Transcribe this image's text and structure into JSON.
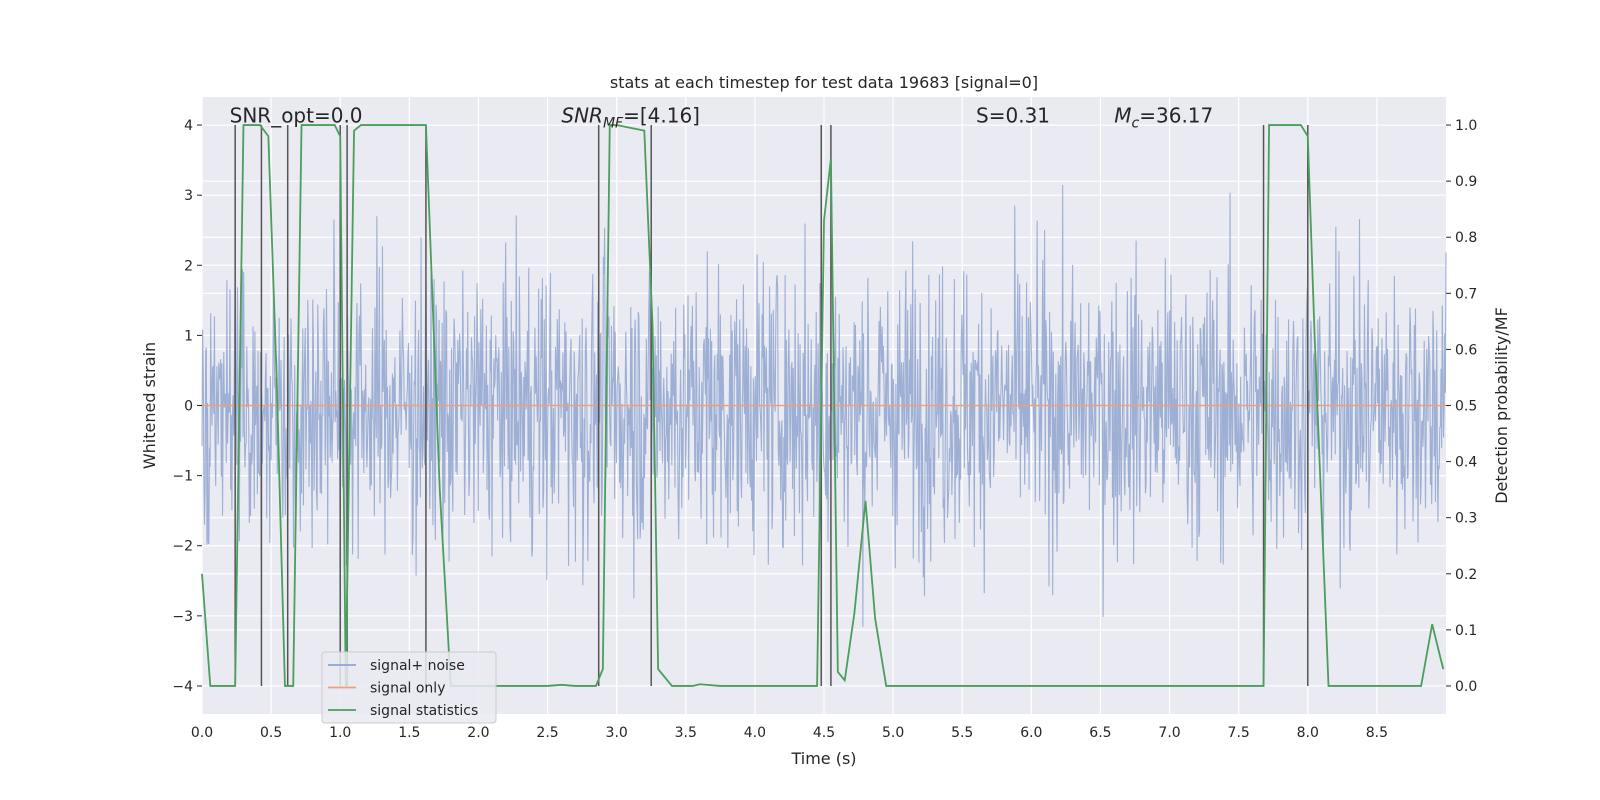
{
  "chart_data": {
    "type": "line",
    "title": "stats at each timestep for test data 19683 [signal=0]",
    "xlabel": "Time (s)",
    "ylabel_left": "Whitened strain",
    "ylabel_right": "Detection probability/MF",
    "xlim": [
      0.0,
      9.0
    ],
    "ylim_left": [
      -4.4,
      4.4
    ],
    "ylim_right": [
      -0.05,
      1.05
    ],
    "x_ticks": [
      0.0,
      0.5,
      1.0,
      1.5,
      2.0,
      2.5,
      3.0,
      3.5,
      4.0,
      4.5,
      5.0,
      5.5,
      6.0,
      6.5,
      7.0,
      7.5,
      8.0,
      8.5
    ],
    "x_tick_labels": [
      "0.0",
      "0.5",
      "1.0",
      "1.5",
      "2.0",
      "2.5",
      "3.0",
      "3.5",
      "4.0",
      "4.5",
      "5.0",
      "5.5",
      "6.0",
      "6.5",
      "7.0",
      "7.5",
      "8.0",
      "8.5"
    ],
    "y_left_ticks": [
      4,
      3,
      2,
      1,
      0,
      -1,
      -2,
      -3,
      -4
    ],
    "y_left_tick_labels": [
      "4",
      "3",
      "2",
      "1",
      "0",
      "−1",
      "−2",
      "−3",
      "−4"
    ],
    "y_right_ticks": [
      1.0,
      0.9,
      0.8,
      0.7,
      0.6,
      0.5,
      0.4,
      0.3,
      0.2,
      0.1,
      0.0
    ],
    "y_right_tick_labels": [
      "1.0",
      "0.9",
      "0.8",
      "0.7",
      "0.6",
      "0.5",
      "0.4",
      "0.3",
      "0.2",
      "0.1",
      "0.0"
    ],
    "grid": true,
    "legend": {
      "placement": "lower-left",
      "entries": [
        "signal+ noise",
        "signal only",
        "signal statistics"
      ]
    },
    "series": [
      {
        "name": "signal+ noise",
        "axis": "left",
        "color": "#8fa4cf",
        "kind": "noise",
        "sample_count": 2000,
        "typical_range": [
          -2.2,
          2.5
        ],
        "peak_range": [
          -4.0,
          4.0
        ]
      },
      {
        "name": "signal only",
        "axis": "left",
        "color": "#e8a07e",
        "kind": "constant",
        "value": 0.0
      },
      {
        "name": "signal statistics",
        "axis": "right",
        "color": "#4b9e5b",
        "kind": "line",
        "x": [
          0.0,
          0.06,
          0.18,
          0.24,
          0.3,
          0.42,
          0.48,
          0.54,
          0.6,
          0.66,
          0.72,
          0.96,
          1.0,
          1.04,
          1.1,
          1.15,
          1.6,
          1.62,
          1.72,
          1.8,
          2.5,
          2.6,
          2.7,
          2.85,
          2.9,
          2.95,
          3.0,
          3.2,
          3.26,
          3.3,
          3.4,
          3.55,
          3.6,
          3.75,
          4.45,
          4.5,
          4.55,
          4.6,
          4.65,
          4.72,
          4.8,
          4.87,
          4.95,
          7.68,
          7.72,
          7.8,
          7.95,
          8.0,
          8.05,
          8.15,
          8.82,
          8.9,
          8.98
        ],
        "y": [
          0.2,
          0.0,
          0.0,
          0.0,
          1.0,
          1.0,
          0.98,
          0.55,
          0.0,
          0.0,
          1.0,
          1.0,
          0.98,
          0.0,
          0.99,
          1.0,
          1.0,
          1.0,
          0.35,
          0.0,
          0.0,
          0.002,
          0.0,
          0.0,
          0.03,
          1.0,
          1.0,
          0.99,
          0.64,
          0.03,
          0.0,
          0.0,
          0.003,
          0.0,
          0.0,
          0.83,
          0.94,
          0.025,
          0.01,
          0.13,
          0.33,
          0.12,
          0.0,
          0.0,
          1.0,
          1.0,
          1.0,
          0.98,
          0.62,
          0.0,
          0.0,
          0.11,
          0.03
        ]
      }
    ],
    "vertical_markers": [
      0.24,
      0.43,
      0.62,
      1.0,
      1.05,
      1.62,
      2.87,
      3.25,
      4.48,
      4.55,
      7.68,
      8.0
    ],
    "annotations": [
      {
        "id": "snr-opt",
        "text": "SNR_opt=0.0",
        "x": 0.2,
        "y": 4.15
      },
      {
        "id": "snr-mf",
        "text": "SNR_MF=[4.16]",
        "x": 2.6,
        "y": 4.15
      },
      {
        "id": "s-stat",
        "text": "S=0.31",
        "x": 5.6,
        "y": 4.15
      },
      {
        "id": "chirp-mass",
        "text": "M_c=36.17",
        "x": 6.6,
        "y": 4.15
      }
    ]
  }
}
